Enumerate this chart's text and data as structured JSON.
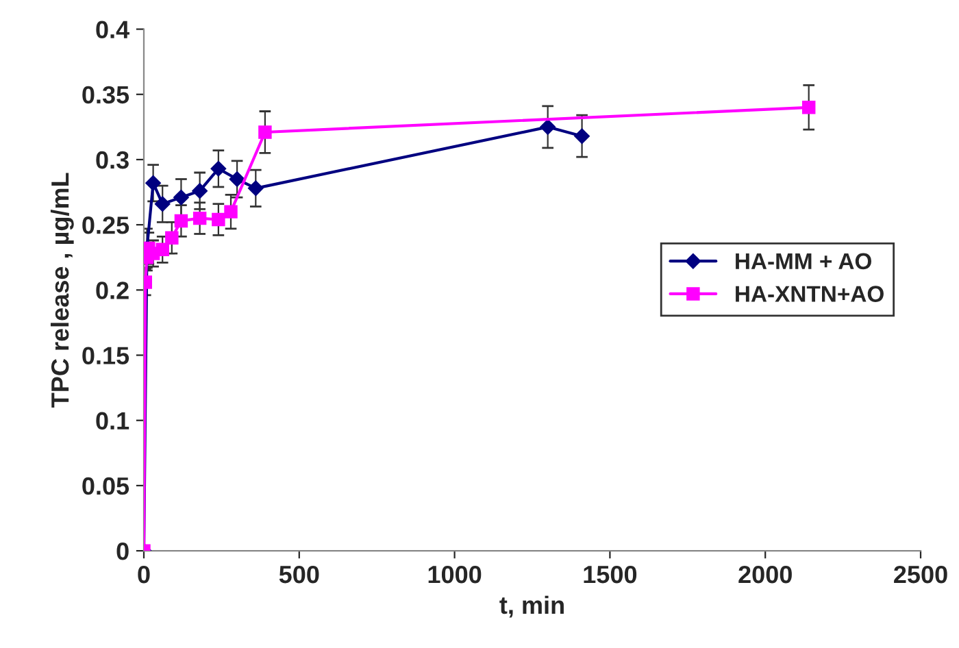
{
  "chart_data": {
    "type": "line",
    "xlabel": "t, min",
    "ylabel": "TPC release , µg/mL",
    "xlim": [
      0,
      2500
    ],
    "xticks": [
      0,
      500,
      1000,
      1500,
      2000,
      2500
    ],
    "ylim": [
      0,
      0.4
    ],
    "yticks": [
      0,
      0.05,
      0.1,
      0.15,
      0.2,
      0.25,
      0.3,
      0.35,
      0.4
    ],
    "grid": false,
    "legend": "right",
    "series": [
      {
        "name": "HA-MM + AO",
        "color": "#000080",
        "marker": "diamond",
        "x": [
          0,
          10,
          30,
          60,
          120,
          180,
          240,
          300,
          360,
          1300,
          1410
        ],
        "values": [
          0,
          0.232,
          0.282,
          0.266,
          0.271,
          0.276,
          0.293,
          0.285,
          0.278,
          0.325,
          0.318
        ],
        "errors": [
          null,
          0.015,
          0.014,
          0.014,
          0.014,
          0.014,
          0.014,
          0.014,
          0.014,
          0.016,
          0.016
        ]
      },
      {
        "name": "HA-XNTN+AO",
        "color": "#ff00ff",
        "marker": "square",
        "x": [
          0,
          5,
          10,
          15,
          30,
          60,
          90,
          120,
          180,
          240,
          280,
          390,
          2140
        ],
        "values": [
          0,
          0.206,
          0.225,
          0.232,
          0.228,
          0.231,
          0.24,
          0.253,
          0.255,
          0.254,
          0.26,
          0.321,
          0.34
        ],
        "errors": [
          null,
          0.01,
          0.01,
          0.012,
          0.01,
          0.01,
          0.012,
          0.012,
          0.012,
          0.012,
          0.013,
          0.016,
          0.017
        ]
      }
    ]
  }
}
